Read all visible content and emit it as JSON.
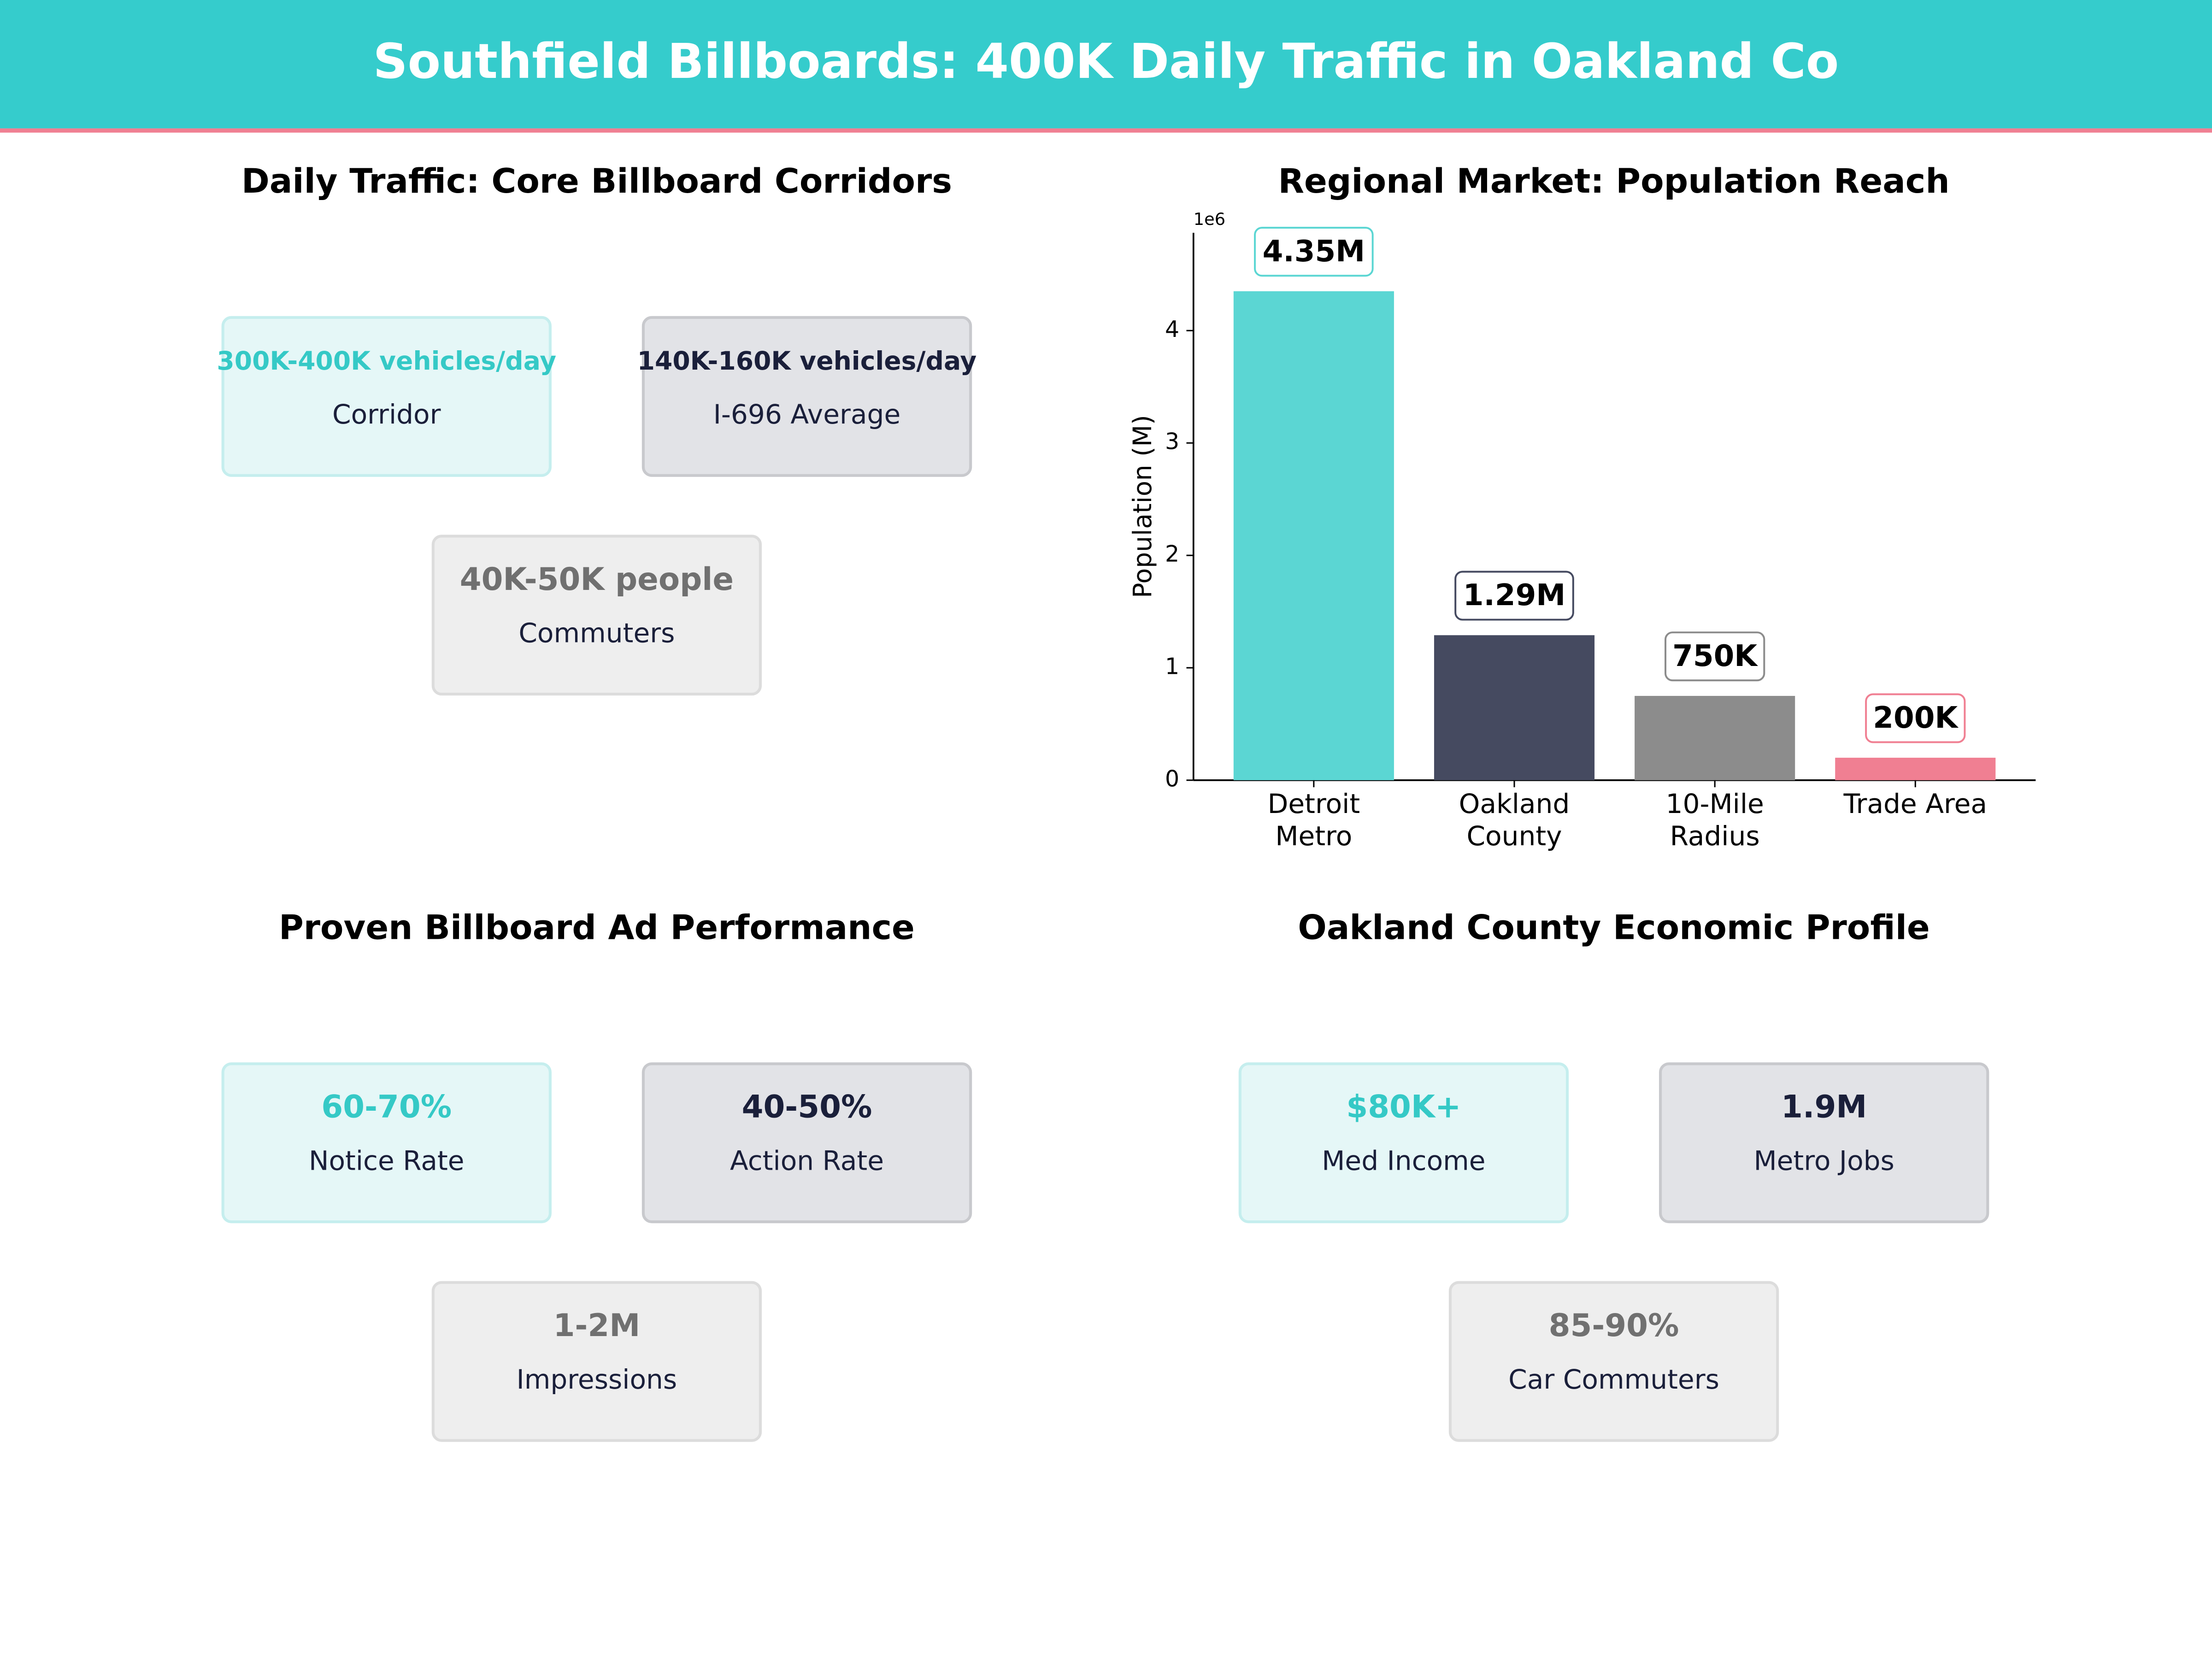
{
  "title": "Southfield Billboards: 400K Daily Traffic in Oakland Co",
  "panels": [
    {
      "title": "Daily Traffic: Core Billboard Corridors",
      "cards": [
        {
          "value": "300K-400K vehicles/day",
          "label": "Corridor"
        },
        {
          "value": "140K-160K vehicles/day",
          "label": "I-696 Average"
        },
        {
          "value": "40K-50K people",
          "label": "Commuters"
        }
      ]
    },
    {
      "title": "Proven Billboard Ad Performance",
      "cards": [
        {
          "value": "60-70%",
          "label": "Notice Rate"
        },
        {
          "value": "40-50%",
          "label": "Action Rate"
        },
        {
          "value": "1-2M",
          "label": "Impressions"
        }
      ]
    },
    {
      "title": "Oakland County Economic Profile",
      "cards": [
        {
          "value": "$80K+",
          "label": "Med Income"
        },
        {
          "value": "1.9M",
          "label": "Metro Jobs"
        },
        {
          "value": "85-90%",
          "label": "Car Commuters"
        }
      ]
    }
  ],
  "chart_data": {
    "type": "bar",
    "title": "Regional Market: Population Reach",
    "y_label": "Population (M)",
    "offset_label": "1e6",
    "categories": [
      "Detroit\nMetro",
      "Oakland\nCounty",
      "10-Mile\nRadius",
      "Trade Area"
    ],
    "values": [
      4350000,
      1290000,
      750000,
      200000
    ],
    "value_labels": [
      "4.35M",
      "1.29M",
      "750K",
      "200K"
    ],
    "colors": [
      "#5bd6d3",
      "#454a60",
      "#8c8c8c",
      "#f07f92"
    ],
    "ylim": [
      0,
      4870000
    ],
    "yticks": [
      {
        "value": 0,
        "label": "0"
      },
      {
        "value": 1000000,
        "label": "1"
      },
      {
        "value": 2000000,
        "label": "2"
      },
      {
        "value": 3000000,
        "label": "3"
      },
      {
        "value": 4000000,
        "label": "4"
      }
    ]
  }
}
